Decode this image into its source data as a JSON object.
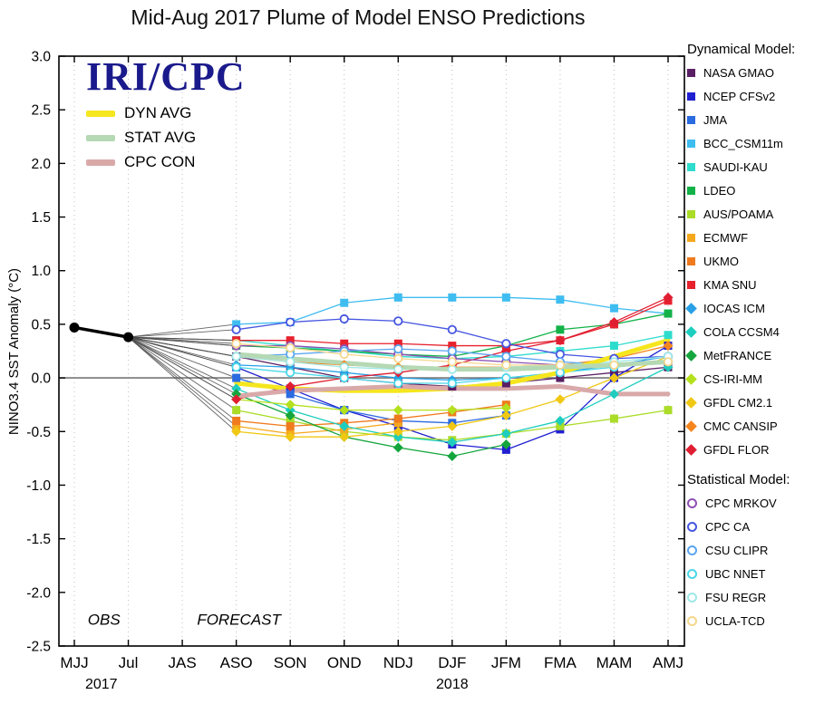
{
  "chart_data": {
    "type": "line",
    "title": "Mid-Aug 2017 Plume of Model ENSO Predictions",
    "ylabel": "NINO3.4 SST Anomaly (°C)",
    "ylim": [
      -2.5,
      3.0
    ],
    "y_tick_step": 0.5,
    "grid": "dotted-vertical",
    "x_categories": [
      "MJJ",
      "Jul",
      "JAS",
      "ASO",
      "SON",
      "OND",
      "NDJ",
      "DJF",
      "JFM",
      "FMA",
      "MAM",
      "AMJ"
    ],
    "year_labels": [
      {
        "text": "2017",
        "x_index": 0.5
      },
      {
        "text": "2018",
        "x_index": 7
      }
    ],
    "annotations": [
      {
        "text": "OBS",
        "x_index": 0.55,
        "y": -2.3
      },
      {
        "text": "FORECAST",
        "x_index": 3.05,
        "y": -2.3
      }
    ],
    "observed": {
      "name": "OBS",
      "x_indices": [
        0,
        1
      ],
      "values": [
        0.47,
        0.38
      ],
      "color": "#000000"
    },
    "forecast_start_index": 3,
    "fan_color": "#4a4a4a",
    "zero_line_color": "#777777",
    "averages": [
      {
        "name": "DYN AVG",
        "color": "#f5e61e",
        "values": [
          -0.05,
          -0.1,
          -0.12,
          -0.12,
          -0.1,
          -0.05,
          0.05,
          0.2,
          0.35
        ]
      },
      {
        "name": "STAT AVG",
        "color": "#b4d9b4",
        "values": [
          0.22,
          0.18,
          0.14,
          0.1,
          0.08,
          0.08,
          0.1,
          0.12,
          0.15
        ]
      },
      {
        "name": "CPC CON",
        "color": "#d9a9a9",
        "values": [
          -0.17,
          -0.12,
          -0.1,
          -0.08,
          -0.1,
          -0.1,
          -0.08,
          -0.15,
          -0.15
        ]
      }
    ],
    "series": [
      {
        "name": "NASA GMAO",
        "group": "dynamical",
        "marker": "square",
        "color": "#5a1e64",
        "values": [
          0.2,
          0.1,
          0.0,
          -0.05,
          -0.08,
          -0.05,
          0.0,
          0.05,
          0.1
        ]
      },
      {
        "name": "NCEP CFSv2",
        "group": "dynamical",
        "marker": "square",
        "color": "#2020d0",
        "values": [
          0.1,
          -0.1,
          -0.3,
          -0.45,
          -0.62,
          -0.67,
          -0.48,
          0.0,
          0.3
        ]
      },
      {
        "name": "JMA",
        "group": "dynamical",
        "marker": "square",
        "color": "#2b6be0",
        "values": [
          0.0,
          -0.15,
          -0.3,
          -0.4,
          -0.42,
          -0.35,
          null,
          null,
          null
        ]
      },
      {
        "name": "BCC_CSM11m",
        "group": "dynamical",
        "marker": "square",
        "color": "#3fbdf0",
        "values": [
          0.5,
          0.52,
          0.7,
          0.75,
          0.75,
          0.75,
          0.73,
          0.65,
          0.6
        ]
      },
      {
        "name": "SAUDI-KAU",
        "group": "dynamical",
        "marker": "square",
        "color": "#2edccd",
        "values": [
          0.35,
          0.3,
          0.25,
          0.2,
          0.18,
          0.2,
          0.25,
          0.3,
          0.4
        ]
      },
      {
        "name": "LDEO",
        "group": "dynamical",
        "marker": "square",
        "color": "#12b248",
        "values": [
          0.3,
          0.28,
          0.25,
          0.22,
          0.2,
          0.3,
          0.45,
          0.5,
          0.6
        ]
      },
      {
        "name": "AUS/POAMA",
        "group": "dynamical",
        "marker": "square",
        "color": "#aadc28",
        "values": [
          -0.3,
          -0.4,
          -0.5,
          -0.55,
          -0.58,
          -0.52,
          -0.45,
          -0.38,
          -0.3
        ]
      },
      {
        "name": "ECMWF",
        "group": "dynamical",
        "marker": "square",
        "color": "#f5a81e",
        "values": [
          -0.45,
          -0.52,
          -0.48,
          -0.42,
          null,
          null,
          null,
          null,
          null
        ]
      },
      {
        "name": "UKMO",
        "group": "dynamical",
        "marker": "square",
        "color": "#f07a1e",
        "values": [
          -0.4,
          -0.45,
          -0.42,
          -0.38,
          -0.32,
          -0.25,
          null,
          null,
          null
        ]
      },
      {
        "name": "KMA SNU",
        "group": "dynamical",
        "marker": "square",
        "color": "#e8212e",
        "values": [
          0.35,
          0.35,
          0.32,
          0.32,
          0.3,
          0.3,
          0.35,
          0.5,
          0.72
        ]
      },
      {
        "name": "IOCAS ICM",
        "group": "dynamical",
        "marker": "diamond",
        "color": "#28a0e6",
        "values": [
          0.12,
          0.1,
          0.05,
          0.0,
          -0.02,
          0.0,
          0.05,
          0.12,
          0.2
        ]
      },
      {
        "name": "COLA CCSM4",
        "group": "dynamical",
        "marker": "diamond",
        "color": "#1ecdbe",
        "values": [
          -0.1,
          -0.3,
          -0.45,
          -0.55,
          -0.6,
          -0.52,
          -0.4,
          -0.15,
          0.1
        ]
      },
      {
        "name": "MetFRANCE",
        "group": "dynamical",
        "marker": "diamond",
        "color": "#14a53c",
        "values": [
          -0.15,
          -0.35,
          -0.55,
          -0.65,
          -0.73,
          -0.62,
          null,
          null,
          null
        ]
      },
      {
        "name": "CS-IRI-MM",
        "group": "dynamical",
        "marker": "diamond",
        "color": "#b4e01e",
        "values": [
          -0.2,
          -0.25,
          -0.3,
          -0.3,
          -0.3,
          -0.28,
          null,
          null,
          null
        ]
      },
      {
        "name": "GFDL CM2.1",
        "group": "dynamical",
        "marker": "diamond",
        "color": "#f0c814",
        "values": [
          -0.5,
          -0.55,
          -0.55,
          -0.5,
          -0.45,
          -0.35,
          -0.2,
          0.0,
          0.2
        ]
      },
      {
        "name": "CMC CANSIP",
        "group": "dynamical",
        "marker": "diamond",
        "color": "#f5861e",
        "values": [
          0.2,
          0.15,
          0.12,
          0.1,
          0.1,
          0.1,
          0.12,
          0.18,
          0.3
        ]
      },
      {
        "name": "GFDL FLOR",
        "group": "dynamical",
        "marker": "diamond",
        "color": "#e01e32",
        "values": [
          -0.2,
          -0.08,
          0.0,
          0.05,
          0.12,
          0.25,
          0.35,
          0.52,
          0.75
        ]
      },
      {
        "name": "CPC MRKOV",
        "group": "statistical",
        "marker": "circle",
        "color": "#8e4fb4",
        "values": [
          0.3,
          0.3,
          0.27,
          0.22,
          0.18,
          0.15,
          0.12,
          0.12,
          0.15
        ]
      },
      {
        "name": "CPC CA",
        "group": "statistical",
        "marker": "circle",
        "color": "#4656e0",
        "values": [
          0.45,
          0.52,
          0.55,
          0.53,
          0.45,
          0.32,
          0.22,
          0.18,
          0.2
        ]
      },
      {
        "name": "CSU CLIPR",
        "group": "statistical",
        "marker": "circle",
        "color": "#5aa5f0",
        "values": [
          0.2,
          0.22,
          0.25,
          0.27,
          0.25,
          0.2,
          0.15,
          0.12,
          0.15
        ]
      },
      {
        "name": "UBC NNET",
        "group": "statistical",
        "marker": "circle",
        "color": "#49d7e8",
        "values": [
          0.1,
          0.05,
          0.0,
          -0.05,
          -0.05,
          0.0,
          0.05,
          0.1,
          0.15
        ]
      },
      {
        "name": "FSU REGR",
        "group": "statistical",
        "marker": "circle",
        "color": "#9fe8e8",
        "values": [
          0.2,
          0.15,
          0.1,
          0.08,
          0.08,
          0.1,
          0.12,
          0.15,
          0.2
        ]
      },
      {
        "name": "UCLA-TCD",
        "group": "statistical",
        "marker": "circle",
        "color": "#f5d78c",
        "values": [
          0.32,
          0.28,
          0.22,
          0.18,
          0.15,
          0.12,
          0.12,
          0.12,
          0.15
        ]
      }
    ]
  },
  "plot_legend": {
    "brand": "IRI/CPC",
    "brand_color": "#1a1a8c"
  },
  "side_legend": {
    "dynamical_header": "Dynamical Model:",
    "statistical_header": "Statistical Model:"
  }
}
